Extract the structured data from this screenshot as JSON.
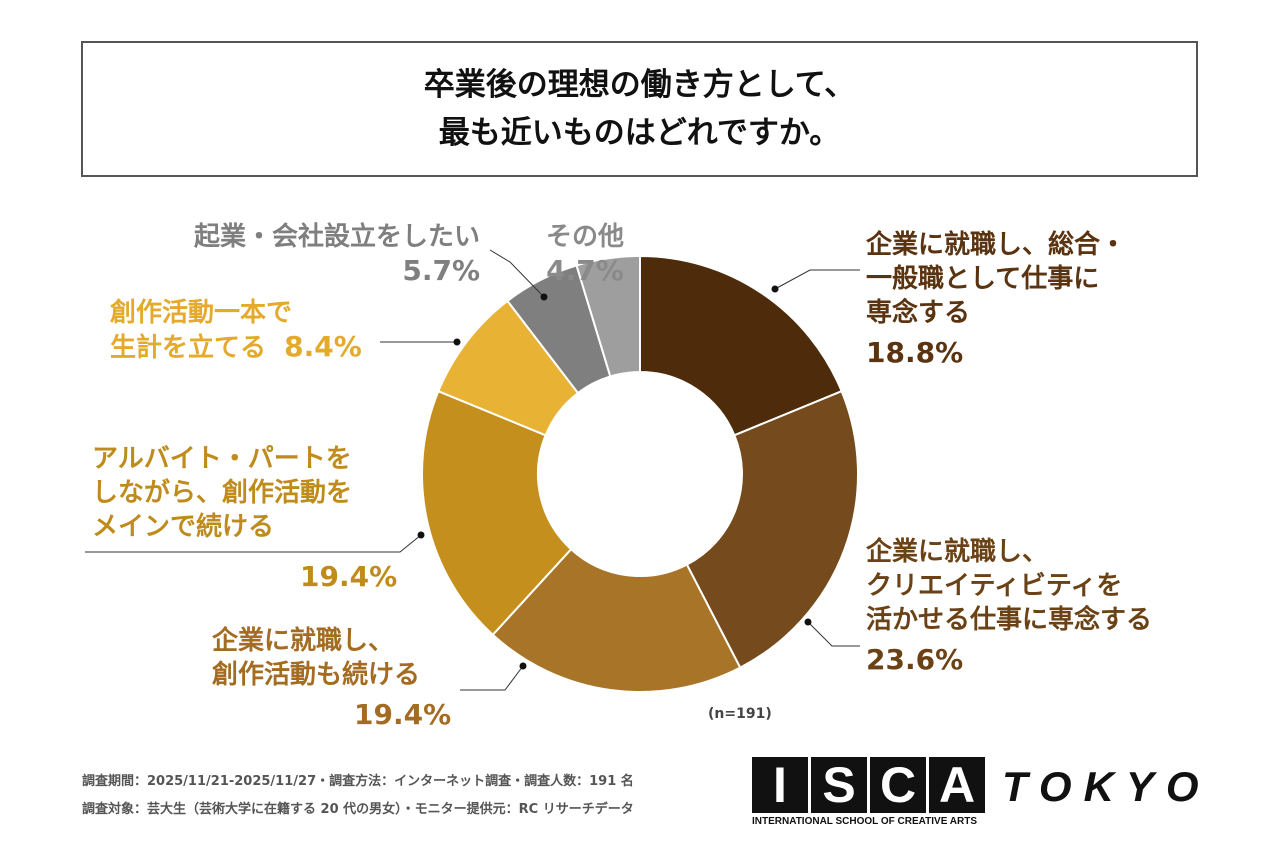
{
  "title": {
    "line1": "卒業後の理想の働き方として、",
    "line2": "最も近いものはどれですか。"
  },
  "chart_data": {
    "type": "pie",
    "donut": true,
    "title": "卒業後の理想の働き方として、最も近いものはどれですか。",
    "n_label": "(n=191)",
    "slices": [
      {
        "label": [
          "企業に就職し、総合・",
          "一般職として仕事に",
          "専念する"
        ],
        "value": 18.8,
        "pct": "18.8%",
        "color": "#4e2b0b",
        "text_color": "#5a3311"
      },
      {
        "label": [
          "企業に就職し、",
          "クリエイティビティを",
          "活かせる仕事に専念する"
        ],
        "value": 23.6,
        "pct": "23.6%",
        "color": "#754a1c",
        "text_color": "#6b4216"
      },
      {
        "label": [
          "企業に就職し、",
          "創作活動も続ける"
        ],
        "value": 19.4,
        "pct": "19.4%",
        "color": "#a87428",
        "text_color": "#a36c22"
      },
      {
        "label": [
          "アルバイト・パートを",
          "しながら、創作活動を",
          "メインで続ける"
        ],
        "value": 19.4,
        "pct": "19.4%",
        "color": "#c48f1c",
        "text_color": "#bf8c1c"
      },
      {
        "label": [
          "創作活動一本で",
          "生計を立てる"
        ],
        "value": 8.4,
        "pct": "8.4%",
        "color": "#e8b334",
        "text_color": "#e3aa2c"
      },
      {
        "label": [
          "起業・会社設立をしたい"
        ],
        "value": 5.7,
        "pct": "5.7%",
        "color": "#7f7f7f",
        "text_color": "#7f7f7f"
      },
      {
        "label": [
          "その他"
        ],
        "value": 4.7,
        "pct": "4.7%",
        "color": "#9e9e9e",
        "text_color": "#8a8a8a"
      }
    ]
  },
  "footer": {
    "line1": "調査期間：2025/11/21-2025/11/27・調査方法：インターネット調査・調査人数：191 名",
    "line2": "調査対象：芸大生（芸術大学に在籍する 20 代の男女）・モニター提供元：RC リサーチデータ"
  },
  "logo": {
    "letters": [
      "I",
      "S",
      "C",
      "A"
    ],
    "tokyo": "TOKYO",
    "sub": "INTERNATIONAL SCHOOL OF CREATIVE ARTS"
  }
}
